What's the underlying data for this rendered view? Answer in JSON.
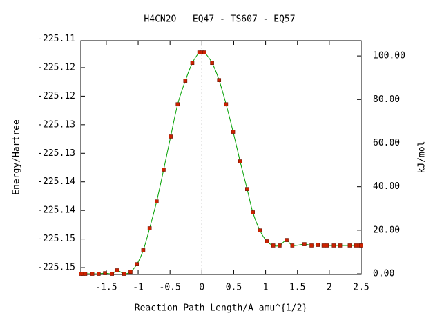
{
  "chart_data": {
    "type": "line",
    "title": "H4CN2O   EQ47 - TS607 - EQ57",
    "xlabel": "Reaction Path Length/A amu^{1/2}",
    "ylabel": "Energy/Hartree",
    "y2label": "kJ/mol",
    "xlim": [
      -1.9,
      2.5
    ],
    "xticks": [
      -1.5,
      -1,
      -0.5,
      0,
      0.5,
      1,
      1.5,
      2,
      2.5
    ],
    "ylim": [
      -225.1512,
      -225.1103
    ],
    "yticks": [
      {
        "value": -225.11,
        "label": "-225.11"
      },
      {
        "value": -225.115,
        "label": "-225.12"
      },
      {
        "value": -225.12,
        "label": "-225.12"
      },
      {
        "value": -225.125,
        "label": "-225.13"
      },
      {
        "value": -225.13,
        "label": "-225.13"
      },
      {
        "value": -225.135,
        "label": "-225.14"
      },
      {
        "value": -225.14,
        "label": "-225.14"
      },
      {
        "value": -225.145,
        "label": "-225.15"
      },
      {
        "value": -225.15,
        "label": "-225.15"
      }
    ],
    "y2lim": [
      -0.3,
      107
    ],
    "y2ticks": [
      {
        "value": 0,
        "label": "0.00"
      },
      {
        "value": 20,
        "label": "20.00"
      },
      {
        "value": 40,
        "label": "40.00"
      },
      {
        "value": 60,
        "label": "60.00"
      },
      {
        "value": 80,
        "label": "80.00"
      },
      {
        "value": 100,
        "label": "100.00"
      }
    ],
    "reference_line_x": 0,
    "x": [
      -1.9,
      -1.87,
      -1.83,
      -1.72,
      -1.62,
      -1.52,
      -1.41,
      -1.33,
      -1.22,
      -1.12,
      -1.02,
      -0.92,
      -0.82,
      -0.71,
      -0.6,
      -0.49,
      -0.38,
      -0.26,
      -0.15,
      -0.04,
      0,
      0.04,
      0.16,
      0.27,
      0.38,
      0.49,
      0.6,
      0.71,
      0.8,
      0.91,
      1.02,
      1.12,
      1.22,
      1.33,
      1.42,
      1.61,
      1.72,
      1.82,
      1.91,
      1.96,
      2.07,
      2.17,
      2.32,
      2.42,
      2.48,
      2.5
    ],
    "series": [
      {
        "color": "#00a000",
        "marker_color": "#cc2200",
        "axis": "y2",
        "values": [
          0,
          0,
          0,
          0,
          0,
          0.3,
          0,
          1.6,
          0,
          0.9,
          4.4,
          10.8,
          20.9,
          33.2,
          47.8,
          63.0,
          77.8,
          88.6,
          96.8,
          101.6,
          101.6,
          101.6,
          96.8,
          88.9,
          77.8,
          65.2,
          51.6,
          38.9,
          28.2,
          19.9,
          14.9,
          13.0,
          13.0,
          15.5,
          13.0,
          13.6,
          13.0,
          13.3,
          13.0,
          13.0,
          13.0,
          13.0,
          13.0,
          13.0,
          13.0,
          13.0
        ]
      }
    ]
  }
}
